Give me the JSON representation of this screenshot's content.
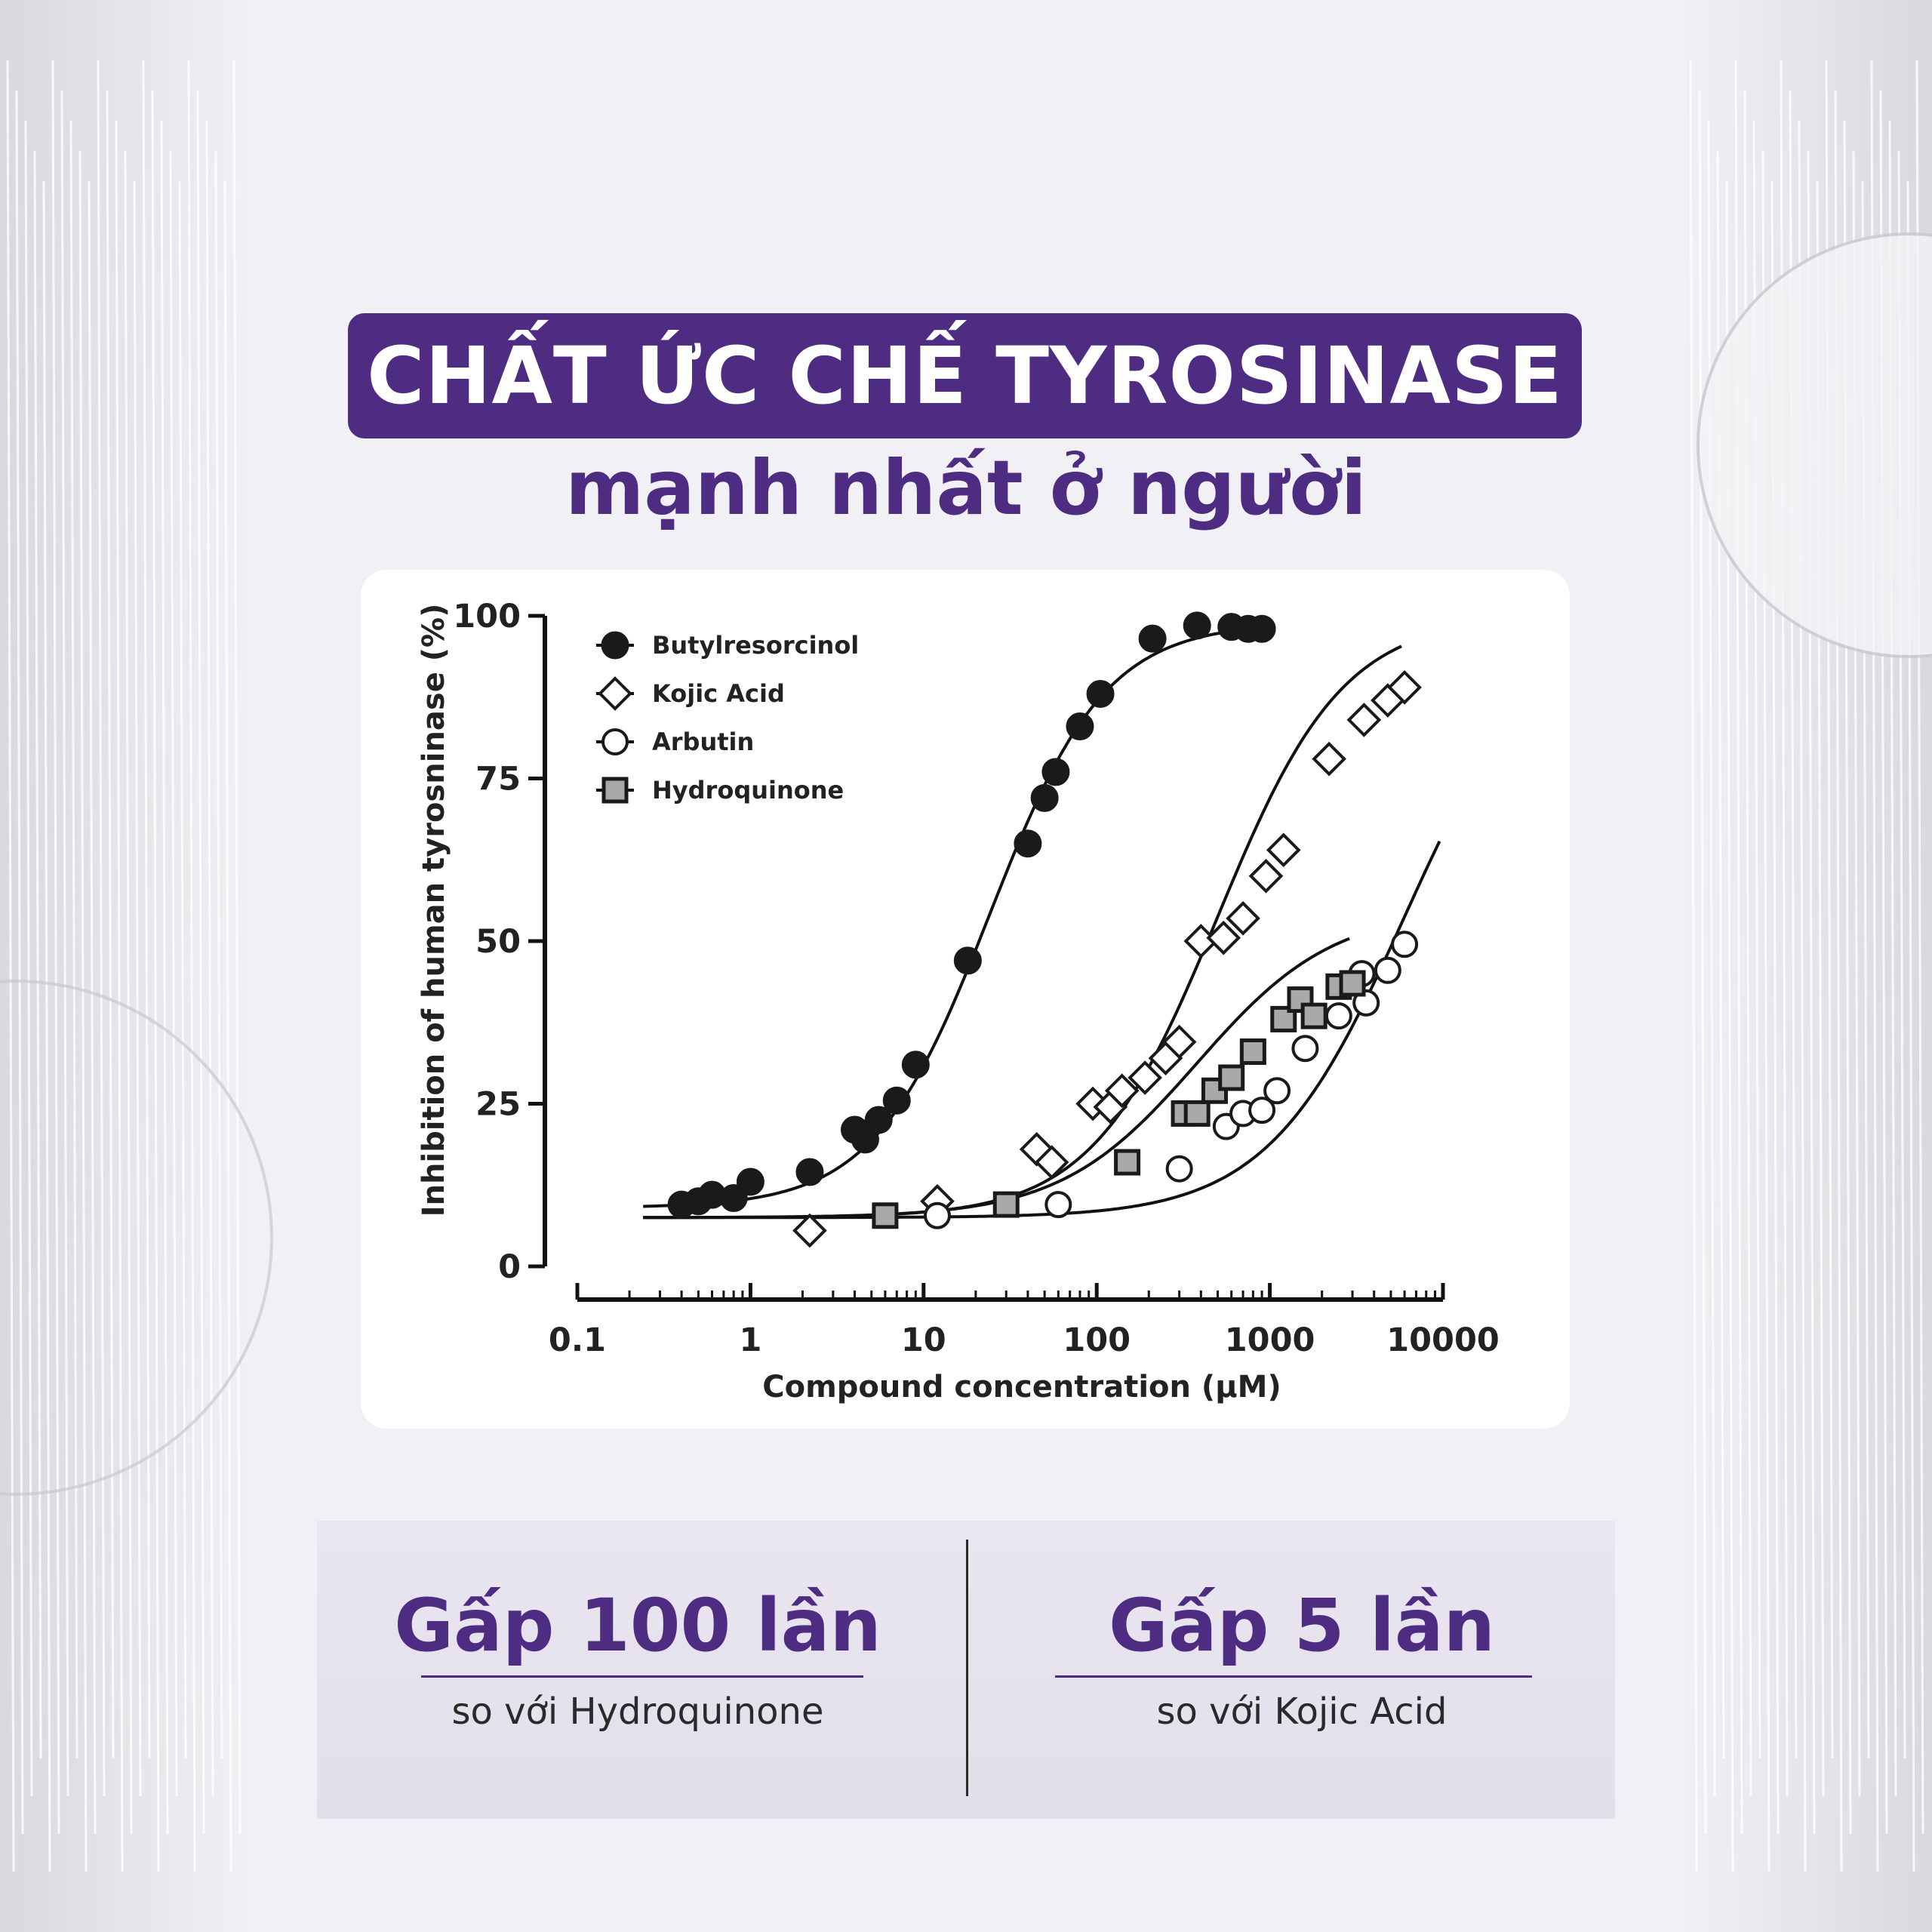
{
  "title": "CHẤT ỨC CHẾ TYROSINASE",
  "subtitle": "mạnh nhất ở người",
  "stats": [
    {
      "main": "Gấp 100 lần",
      "sub": "so với Hydroquinone"
    },
    {
      "main": "Gấp 5 lần",
      "sub": "so với Kojic Acid"
    }
  ],
  "colors": {
    "brand_purple": "#4d2c82",
    "ink": "#1a1a1a",
    "marker_fill_gray": "#a9a9a9"
  },
  "chart_data": {
    "type": "scatter",
    "title": "",
    "xlabel": "Compound concentration (µM)",
    "ylabel": "Inhibition of human tyrosninase (%)",
    "x_scale": "log",
    "xlim": [
      0.1,
      10000
    ],
    "ylim": [
      0,
      100
    ],
    "x_ticks": [
      0.1,
      1,
      10,
      100,
      1000,
      10000
    ],
    "x_tick_labels": [
      "0.1",
      "1",
      "10",
      "100",
      "1000",
      "10000"
    ],
    "y_ticks": [
      0,
      25,
      50,
      75,
      100
    ],
    "y_tick_labels": [
      "0",
      "25",
      "50",
      "75",
      "100"
    ],
    "legend_position": "top-left",
    "fitted_curves": true,
    "series": [
      {
        "name": "Butylresorcinol",
        "marker": "filled-circle",
        "fit": {
          "bottom": 9,
          "top": 99,
          "ec50": 24,
          "hill": 1.3
        },
        "points": [
          [
            0.4,
            9.5
          ],
          [
            0.5,
            10
          ],
          [
            0.6,
            11
          ],
          [
            0.8,
            10.5
          ],
          [
            1,
            13
          ],
          [
            2.2,
            14.5
          ],
          [
            4,
            21
          ],
          [
            4.6,
            19.5
          ],
          [
            5.5,
            22.5
          ],
          [
            7,
            25.5
          ],
          [
            9,
            31
          ],
          [
            18,
            47
          ],
          [
            40,
            65
          ],
          [
            50,
            72
          ],
          [
            58,
            76
          ],
          [
            80,
            83
          ],
          [
            105,
            88
          ],
          [
            210,
            96.5
          ],
          [
            380,
            98.5
          ],
          [
            600,
            98.3
          ],
          [
            750,
            98
          ],
          [
            900,
            98
          ]
        ]
      },
      {
        "name": "Kojic Acid",
        "marker": "open-diamond",
        "fit": {
          "bottom": 7.5,
          "top": 100,
          "ec50": 500,
          "hill": 1.2
        },
        "points": [
          [
            2.2,
            5.5
          ],
          [
            12,
            10
          ],
          [
            45,
            18
          ],
          [
            55,
            16
          ],
          [
            95,
            25
          ],
          [
            120,
            24.5
          ],
          [
            140,
            27
          ],
          [
            190,
            29
          ],
          [
            250,
            32
          ],
          [
            300,
            34.5
          ],
          [
            400,
            50
          ],
          [
            540,
            50.5
          ],
          [
            700,
            53.5
          ],
          [
            950,
            60
          ],
          [
            1200,
            64
          ],
          [
            2200,
            78
          ],
          [
            3500,
            84
          ],
          [
            4800,
            87
          ],
          [
            6000,
            89
          ]
        ]
      },
      {
        "name": "Arbutin",
        "marker": "open-circle",
        "fit": {
          "bottom": 7.5,
          "top": 100,
          "ec50": 6000,
          "hill": 1.1
        },
        "points": [
          [
            12,
            7.8
          ],
          [
            60,
            9.5
          ],
          [
            300,
            15
          ],
          [
            560,
            21.5
          ],
          [
            700,
            23.5
          ],
          [
            900,
            24
          ],
          [
            1100,
            27
          ],
          [
            1600,
            33.5
          ],
          [
            2500,
            38.5
          ],
          [
            3400,
            45
          ],
          [
            3600,
            40.5
          ],
          [
            4800,
            45.5
          ],
          [
            6000,
            49.5
          ]
        ]
      },
      {
        "name": "Hydroquinone",
        "marker": "gray-square",
        "fit": {
          "bottom": 7.5,
          "top": 55,
          "ec50": 380,
          "hill": 1.1
        },
        "points": [
          [
            6,
            7.8
          ],
          [
            30,
            9.5
          ],
          [
            150,
            16
          ],
          [
            320,
            23.5
          ],
          [
            380,
            23.5
          ],
          [
            480,
            27
          ],
          [
            600,
            29
          ],
          [
            800,
            33
          ],
          [
            1200,
            38
          ],
          [
            1500,
            41
          ],
          [
            1800,
            38.5
          ],
          [
            2500,
            43
          ],
          [
            3000,
            43.5
          ]
        ]
      }
    ]
  }
}
